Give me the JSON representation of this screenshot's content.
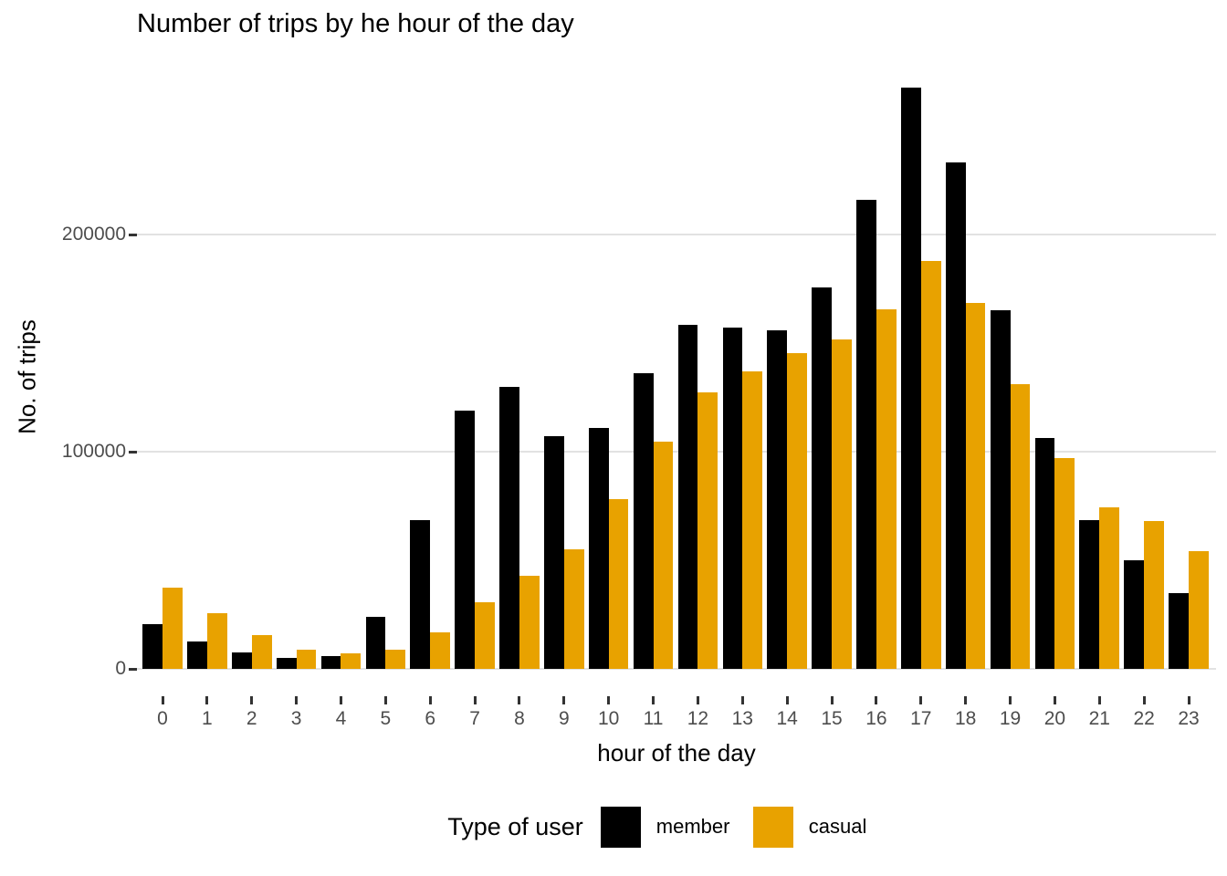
{
  "chart": {
    "title": "Number of trips by he hour of the day",
    "x_axis_title": "hour of the day",
    "y_axis_title": "No. of trips",
    "legend": {
      "title": "Type of user",
      "items": [
        {
          "label": "member",
          "color": "#000000"
        },
        {
          "label": "casual",
          "color": "#E8A200"
        }
      ]
    }
  },
  "chart_data": {
    "type": "bar",
    "grouping": "dodged",
    "title": "Number of trips by he hour of the day",
    "xlabel": "hour of the day",
    "ylabel": "No. of trips",
    "categories": [
      0,
      1,
      2,
      3,
      4,
      5,
      6,
      7,
      8,
      9,
      10,
      11,
      12,
      13,
      14,
      15,
      16,
      17,
      18,
      19,
      20,
      21,
      22,
      23
    ],
    "series": [
      {
        "name": "member",
        "color": "#000000",
        "values": [
          20500,
          12500,
          7500,
          5000,
          6000,
          24000,
          68500,
          119000,
          130000,
          107000,
          111000,
          136000,
          158500,
          157000,
          156000,
          175500,
          216000,
          267500,
          233000,
          165000,
          106500,
          68500,
          50000,
          35000
        ]
      },
      {
        "name": "casual",
        "color": "#E8A200",
        "values": [
          37500,
          25500,
          15500,
          8700,
          7000,
          9000,
          17000,
          30500,
          43000,
          55000,
          78000,
          104500,
          127500,
          137000,
          145500,
          151500,
          165500,
          188000,
          168500,
          131000,
          97000,
          74500,
          68000,
          54000
        ]
      }
    ],
    "y_ticks": [
      0,
      100000,
      200000
    ],
    "y_tick_labels": [
      "0",
      "100000",
      "200000"
    ],
    "ylim": [
      0,
      283000
    ],
    "grid": "horizontal-major-only",
    "gridline_color": "#e2e2e2",
    "tick_color": "#333333",
    "tick_label_color": "#4d4d4d",
    "legend_position": "bottom"
  }
}
